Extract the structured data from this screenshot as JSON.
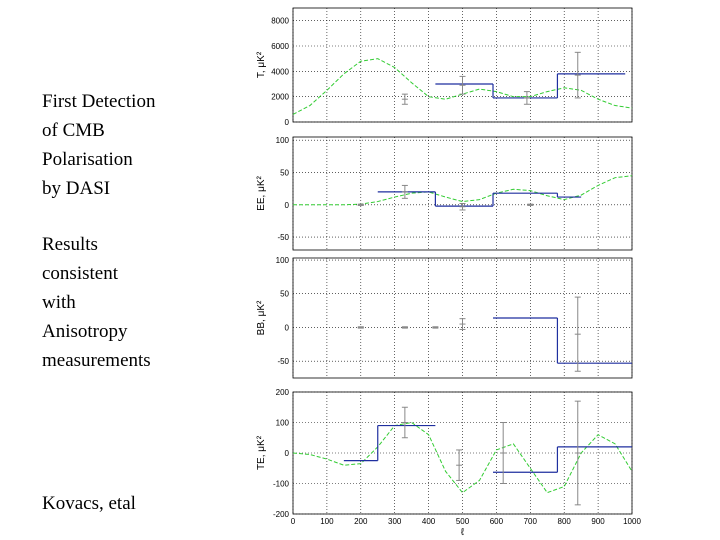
{
  "slide": {
    "heading": [
      "First Detection",
      "of CMB",
      "Polarisation",
      "by DASI"
    ],
    "note": [
      "Results",
      "consistent",
      "with",
      "Anisotropy",
      "measurements"
    ],
    "credit": "Kovacs, etal"
  },
  "chart_data": [
    {
      "type": "line",
      "ylabel": "T, μK²",
      "xlim": [
        0,
        1000
      ],
      "xticks": [
        0,
        100,
        200,
        300,
        400,
        500,
        600,
        700,
        800,
        900,
        1000
      ],
      "ylim": [
        0,
        9000
      ],
      "yticks": [
        0,
        2000,
        4000,
        6000,
        8000
      ],
      "grid": true,
      "model": {
        "color": "#33cc33",
        "x": [
          0,
          50,
          100,
          150,
          200,
          250,
          300,
          350,
          400,
          450,
          500,
          550,
          600,
          650,
          700,
          750,
          800,
          850,
          900,
          950,
          1000
        ],
        "values": [
          600,
          1300,
          2500,
          3800,
          4800,
          5000,
          4300,
          3100,
          2000,
          1800,
          2200,
          2600,
          2400,
          2000,
          2000,
          2400,
          2700,
          2500,
          1800,
          1300,
          1100
        ]
      },
      "steps": {
        "color": "#1f2f9f",
        "edges": [
          420,
          590,
          780,
          980
        ],
        "values": [
          3000,
          1900,
          3800
        ]
      },
      "points": {
        "color": "#888888",
        "x": [
          330,
          500,
          690,
          840
        ],
        "values": [
          1800,
          2900,
          1900,
          3700
        ],
        "errors": [
          400,
          700,
          500,
          1800
        ]
      }
    },
    {
      "type": "line",
      "ylabel": "EE, μK²",
      "xlim": [
        0,
        1000
      ],
      "xticks": [
        0,
        100,
        200,
        300,
        400,
        500,
        600,
        700,
        800,
        900,
        1000
      ],
      "ylim": [
        -70,
        105
      ],
      "yticks": [
        -50,
        0,
        50,
        100
      ],
      "grid": true,
      "model": {
        "color": "#33cc33",
        "x": [
          0,
          50,
          100,
          150,
          200,
          250,
          300,
          350,
          400,
          450,
          500,
          550,
          600,
          650,
          700,
          750,
          800,
          850,
          900,
          950,
          1000
        ],
        "values": [
          0,
          0,
          0,
          0,
          1,
          5,
          12,
          18,
          20,
          12,
          5,
          8,
          18,
          24,
          22,
          14,
          8,
          15,
          30,
          42,
          45
        ]
      },
      "steps": {
        "color": "#1f2f9f",
        "edges": [
          250,
          420,
          590,
          780,
          850
        ],
        "values": [
          20,
          -2,
          18,
          12
        ]
      },
      "points": {
        "color": "#888888",
        "x": [
          200,
          330,
          500,
          700
        ],
        "values": [
          0,
          20,
          -3,
          0
        ],
        "errors": [
          1,
          10,
          5,
          1
        ]
      }
    },
    {
      "type": "line",
      "ylabel": "BB, μK²",
      "xlim": [
        0,
        1000
      ],
      "xticks": [
        0,
        100,
        200,
        300,
        400,
        500,
        600,
        700,
        800,
        900,
        1000
      ],
      "ylim": [
        -75,
        103
      ],
      "yticks": [
        -50,
        0,
        50,
        100
      ],
      "grid": true,
      "steps": {
        "color": "#1f2f9f",
        "edges": [
          590,
          780,
          1000
        ],
        "values": [
          14,
          -53
        ]
      },
      "points": {
        "color": "#888888",
        "x": [
          200,
          330,
          420,
          500,
          840
        ],
        "values": [
          0,
          0,
          0,
          5,
          -10
        ],
        "errors": [
          1,
          1,
          1,
          8,
          55
        ]
      }
    },
    {
      "type": "line",
      "ylabel": "TE, μK²",
      "xlabel": "ℓ",
      "xlim": [
        0,
        1000
      ],
      "xticks": [
        0,
        100,
        200,
        300,
        400,
        500,
        600,
        700,
        800,
        900,
        1000
      ],
      "ylim": [
        -200,
        200
      ],
      "yticks": [
        -200,
        -100,
        0,
        100,
        200
      ],
      "grid": true,
      "model": {
        "color": "#33cc33",
        "x": [
          0,
          50,
          100,
          150,
          200,
          250,
          300,
          350,
          400,
          450,
          500,
          550,
          600,
          650,
          700,
          750,
          800,
          850,
          900,
          950,
          1000
        ],
        "values": [
          0,
          -5,
          -20,
          -40,
          -35,
          20,
          90,
          100,
          60,
          -60,
          -130,
          -90,
          10,
          30,
          -50,
          -130,
          -110,
          0,
          60,
          30,
          -60
        ]
      },
      "steps": {
        "color": "#1f2f9f",
        "edges": [
          150,
          250,
          420,
          590,
          780,
          1000
        ],
        "values": [
          -25,
          90,
          null,
          -63,
          20
        ]
      },
      "points": {
        "color": "#888888",
        "x": [
          330,
          490,
          620,
          840
        ],
        "values": [
          100,
          -40,
          0,
          0
        ],
        "errors": [
          50,
          50,
          100,
          170
        ]
      }
    }
  ]
}
